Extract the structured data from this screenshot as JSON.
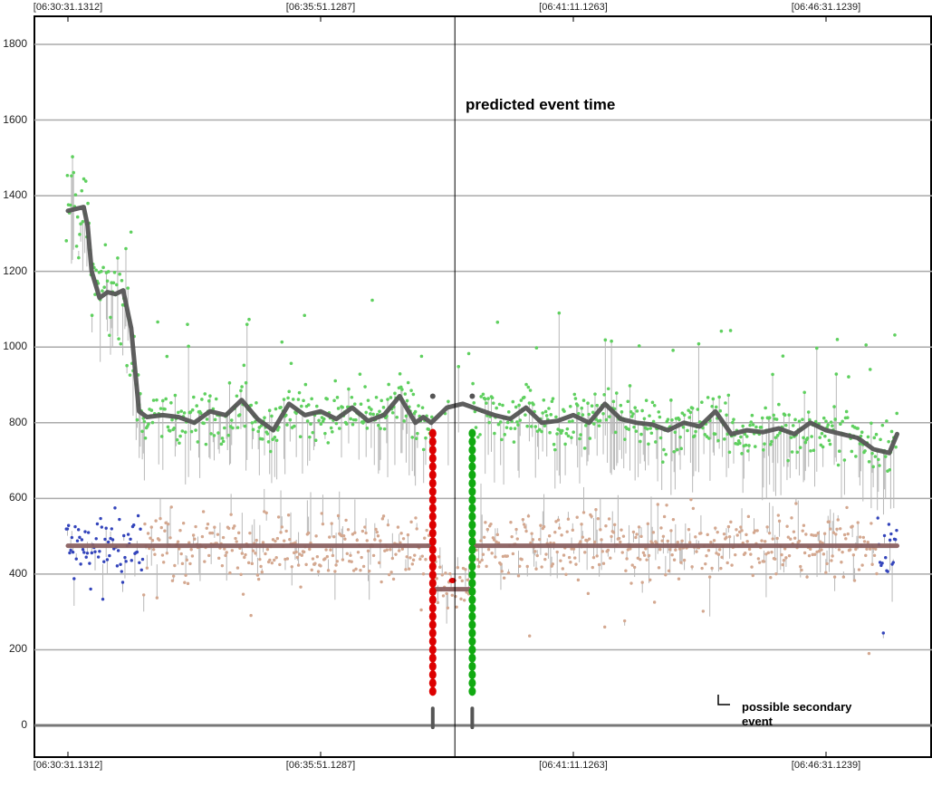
{
  "chart_data": {
    "type": "line",
    "title": "",
    "xlabel": "",
    "ylabel": "",
    "ylim": [
      0,
      1850
    ],
    "grid": true,
    "y_ticks": [
      0,
      200,
      400,
      600,
      800,
      1000,
      1200,
      1400,
      1600,
      1800
    ],
    "x_tick_labels": [
      "[06:30:31.1312]",
      "[06:35:51.1287]",
      "[06:41:11.1263]",
      "[06:46:31.1239]"
    ],
    "x_tick_seconds": [
      0,
      320,
      640,
      960
    ],
    "x_range_seconds": [
      -40,
      1100
    ],
    "series": [
      {
        "kind": "green-upper-smooth",
        "color": "#555555",
        "x_seconds": [
          0,
          10,
          20,
          25,
          30,
          40,
          50,
          60,
          70,
          80,
          90,
          100,
          120,
          140,
          160,
          180,
          200,
          220,
          240,
          260,
          280,
          300,
          320,
          340,
          360,
          380,
          400,
          420,
          440,
          450,
          460,
          480,
          500,
          520,
          540,
          560,
          580,
          600,
          620,
          640,
          660,
          680,
          700,
          720,
          740,
          760,
          780,
          800,
          820,
          840,
          860,
          880,
          900,
          920,
          940,
          960,
          980,
          1000,
          1020,
          1040,
          1050
        ],
        "values": [
          1360,
          1365,
          1370,
          1320,
          1200,
          1130,
          1145,
          1140,
          1150,
          1050,
          830,
          815,
          820,
          815,
          800,
          830,
          820,
          860,
          810,
          780,
          850,
          820,
          830,
          810,
          840,
          805,
          820,
          870,
          800,
          815,
          800,
          840,
          850,
          835,
          820,
          810,
          840,
          800,
          805,
          820,
          800,
          850,
          810,
          800,
          795,
          780,
          800,
          790,
          830,
          770,
          780,
          775,
          785,
          770,
          800,
          780,
          770,
          760,
          730,
          720,
          770
        ]
      },
      {
        "kind": "lower-baseline",
        "color": "#8a6060",
        "x_seconds": [
          0,
          460
        ],
        "values": [
          475,
          475
        ]
      },
      {
        "kind": "lower-baseline-after",
        "color": "#8a6060",
        "x_seconds": [
          515,
          1050
        ],
        "values": [
          475,
          475
        ]
      },
      {
        "kind": "gap-baseline",
        "color": "#8a6060",
        "x_seconds": [
          462,
          510
        ],
        "values": [
          360,
          360
        ]
      }
    ],
    "event_markers": [
      {
        "x_seconds": 462,
        "from": 90,
        "to": 780,
        "color": "#dd0000"
      },
      {
        "x_seconds": 512,
        "from": 90,
        "to": 780,
        "color": "#11aa11"
      }
    ],
    "predicted_event_x_seconds": 490,
    "annotations": {
      "predicted": "predicted event time",
      "secondary_line1": "possible secondary",
      "secondary_line2": "event"
    },
    "colors": {
      "green_points": "#5fd05f",
      "blue_points": "#3344bb",
      "tan_points": "#d4a890",
      "grey_stems": "#b8b8b8",
      "grid": "#aaaaaa"
    }
  }
}
